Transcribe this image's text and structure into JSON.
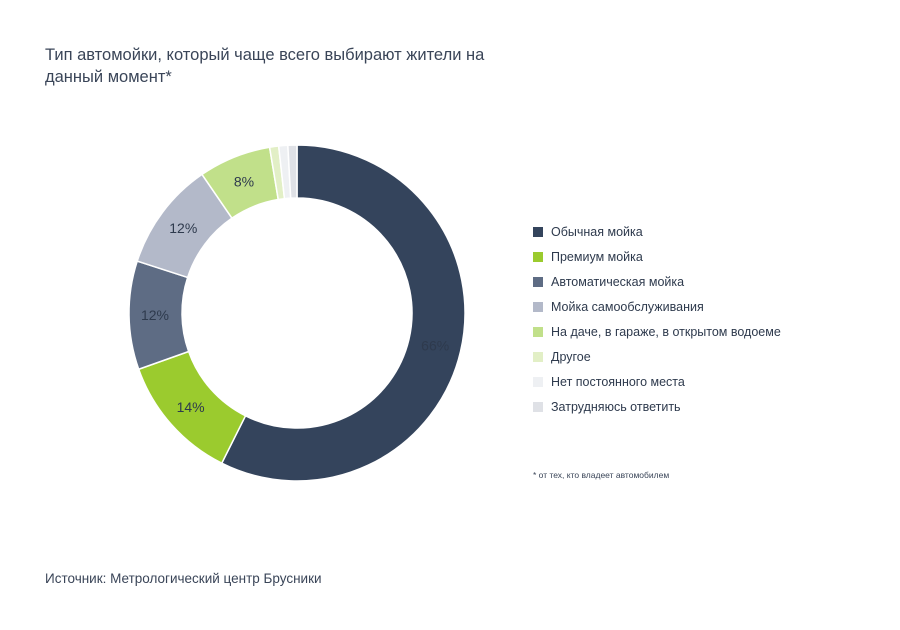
{
  "chart_data": {
    "type": "pie",
    "title": "Тип автомойки, который чаще всего выбирают жители на данный момент*",
    "categories": [
      "Обычная мойка",
      "Премиум мойка",
      "Автоматическая мойка",
      "Мойка самообслуживания",
      "На даче, в гараже, в открытом водоеме",
      "Другое",
      "Нет постоянного места",
      "Затрудняюсь ответить"
    ],
    "values": [
      66,
      14,
      12,
      12,
      8,
      1,
      1,
      1
    ],
    "value_labels": [
      "66%",
      "14%",
      "12%",
      "12%",
      "8%",
      "",
      "",
      ""
    ],
    "colors": [
      "#34445c",
      "#9bcb2e",
      "#5e6c84",
      "#b3b9c9",
      "#c1e08a",
      "#e2efc6",
      "#eef0f3",
      "#dfe1e6"
    ],
    "legend_position": "right"
  },
  "footnote": "* от тех, кто владеет автомобилем",
  "source": "Источник: Метрологический центр Брусники"
}
